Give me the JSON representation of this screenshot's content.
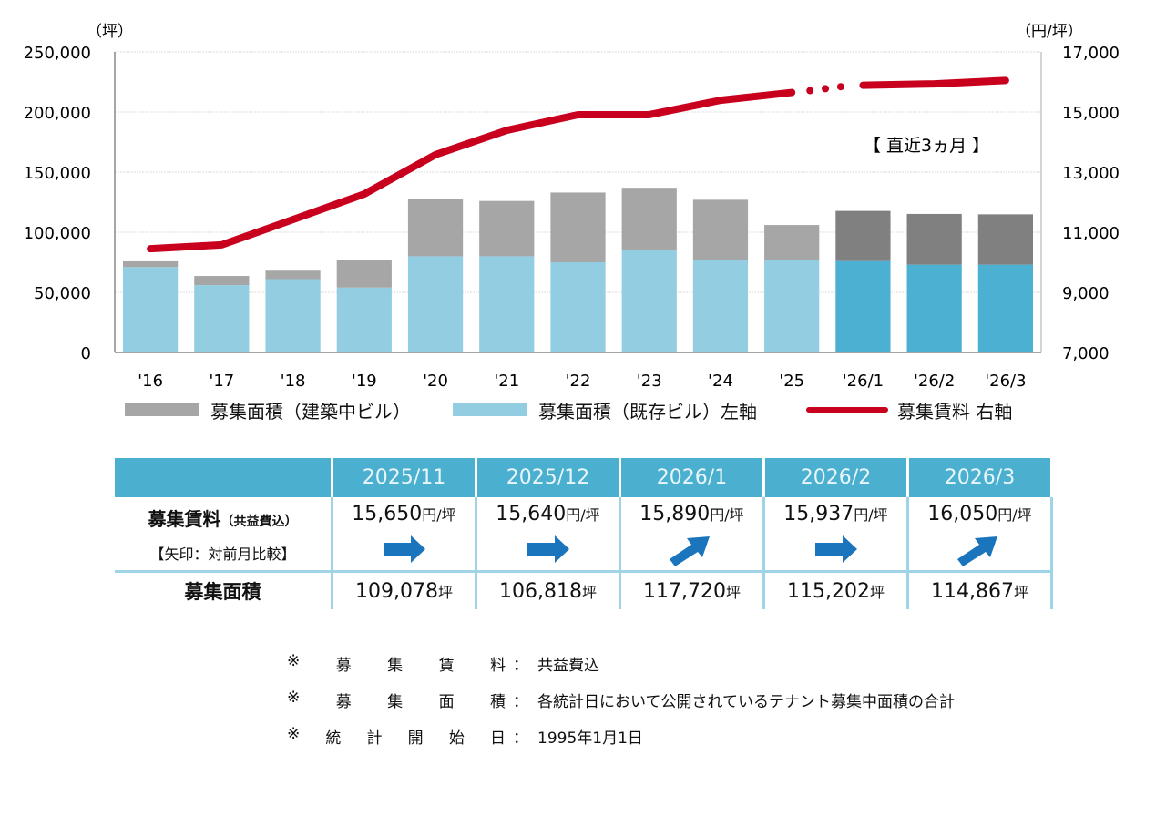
{
  "chart_data": {
    "type": "bar",
    "stacked": true,
    "categories": [
      "'16",
      "'17",
      "'18",
      "'19",
      "'20",
      "'21",
      "'22",
      "'23",
      "'24",
      "'25",
      "'26/1",
      "'26/2",
      "'26/3"
    ],
    "left_axis": {
      "unit_label": "（坪）",
      "ylim": [
        0,
        250000
      ],
      "ticks": [
        "0",
        "50,000",
        "100,000",
        "150,000",
        "200,000",
        "250,000"
      ]
    },
    "right_axis": {
      "unit_label": "（円/坪）",
      "ylim": [
        7000,
        17000
      ],
      "ticks": [
        "7,000",
        "9,000",
        "11,000",
        "13,000",
        "15,000",
        "17,000"
      ]
    },
    "series": [
      {
        "name": "募集面積（既存ビル）左軸",
        "type": "bar",
        "color": "#92cde1",
        "recent_color": "#4bb0d2",
        "values": [
          71000,
          56000,
          61000,
          54000,
          80000,
          80000,
          75000,
          85000,
          77000,
          77000,
          76000,
          73000,
          73000
        ]
      },
      {
        "name": "募集面積（建築中ビル）",
        "type": "bar",
        "color": "#a6a6a6",
        "recent_color": "#808080",
        "values": [
          4800,
          7600,
          7000,
          23000,
          48000,
          46000,
          58000,
          52000,
          50000,
          29000,
          41720,
          42202,
          41867
        ]
      },
      {
        "name": "募集賃料 右軸",
        "type": "line",
        "axis": "right",
        "color": "#c8001e",
        "values": [
          10450,
          10580,
          11420,
          12270,
          13580,
          14390,
          14910,
          14910,
          15390,
          15650,
          15890,
          15937,
          16050
        ]
      }
    ],
    "recent_count": 3,
    "annotation": "【 直近3ヵ月 】",
    "grid": true,
    "legend_position": "bottom"
  },
  "table": {
    "columns": [
      "2025/11",
      "2025/12",
      "2026/1",
      "2026/2",
      "2026/3"
    ],
    "rent_label": "募集賃料",
    "rent_sub": "（共益費込）",
    "arrow_label": "【矢印：対前月比較】",
    "rent_values": [
      "15,650",
      "15,640",
      "15,890",
      "15,937",
      "16,050"
    ],
    "rent_unit": "円/坪",
    "arrows": [
      "right",
      "right",
      "up-right",
      "right",
      "up-right"
    ],
    "area_label": "募集面積",
    "area_values": [
      "109,078",
      "106,818",
      "117,720",
      "115,202",
      "114,867"
    ],
    "area_unit": "坪"
  },
  "notes": [
    {
      "mark": "※",
      "key": [
        "募",
        "集",
        "賃",
        "料"
      ],
      "value": "共益費込"
    },
    {
      "mark": "※",
      "key": [
        "募",
        "集",
        "面",
        "積"
      ],
      "value": "各統計日において公開されているテナント募集中面積の合計"
    },
    {
      "mark": "※",
      "key": [
        "統",
        "計",
        "開",
        "始",
        "日"
      ],
      "value": "1995年1月1日"
    }
  ]
}
